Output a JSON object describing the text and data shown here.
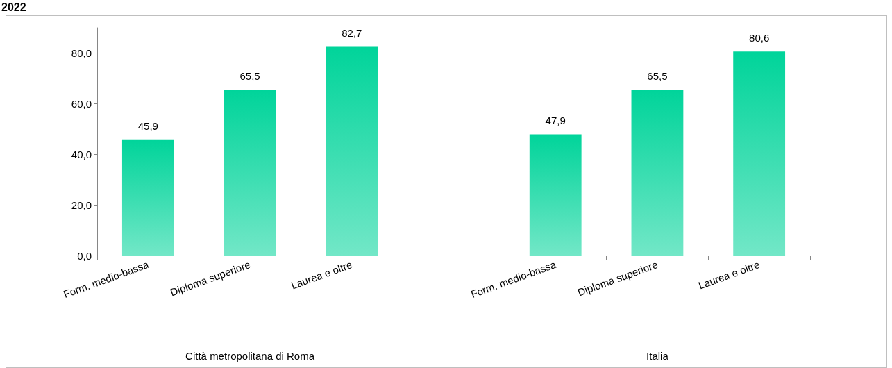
{
  "chart_data": {
    "type": "bar",
    "title": "2022",
    "categories": [
      "Form. medio-bassa",
      "Diploma superiore",
      "Laurea e oltre",
      null,
      "Form. medio-bassa",
      "Diploma superiore",
      "Laurea e oltre"
    ],
    "values": [
      45.9,
      65.5,
      82.7,
      null,
      47.9,
      65.5,
      80.6
    ],
    "value_labels": [
      "45,9",
      "65,5",
      "82,7",
      null,
      "47,9",
      "65,5",
      "80,6"
    ],
    "color": "#00d49a",
    "ylim": [
      0,
      90
    ],
    "yticks": [
      {
        "value": 0,
        "label": "0,0"
      },
      {
        "value": 20,
        "label": "20,0"
      },
      {
        "value": 40,
        "label": "40,0"
      },
      {
        "value": 60,
        "label": "60,0"
      },
      {
        "value": 80,
        "label": "80,0"
      }
    ],
    "annotations": [
      "Città metropolitana di Roma",
      "Italia"
    ],
    "grid": false
  }
}
